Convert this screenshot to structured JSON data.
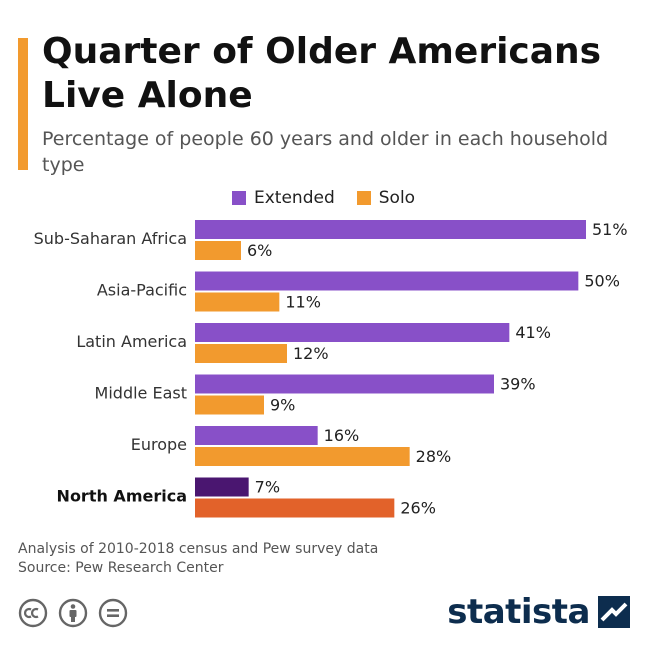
{
  "header": {
    "title": "Quarter of Older Americans Live Alone",
    "subtitle": "Percentage of people 60 years and older in each household type"
  },
  "colors": {
    "accent": "#f29a2e",
    "extended": "#8850c8",
    "solo": "#f29a2e",
    "highlight_extended": "#4a1670",
    "highlight_solo": "#e2622a"
  },
  "chart_data": {
    "type": "bar",
    "orientation": "horizontal",
    "categories": [
      "Sub-Saharan Africa",
      "Asia-Pacific",
      "Latin America",
      "Middle East",
      "Europe",
      "North America"
    ],
    "highlight_category": "North America",
    "series": [
      {
        "name": "Extended",
        "values": [
          51,
          50,
          41,
          39,
          16,
          7
        ]
      },
      {
        "name": "Solo",
        "values": [
          6,
          11,
          12,
          9,
          28,
          26
        ]
      }
    ],
    "value_suffix": "%",
    "xlim": [
      0,
      51
    ],
    "grid": false,
    "legend_position": "top"
  },
  "footer": {
    "note": "Analysis of 2010-2018 census and Pew survey data",
    "source": "Source: Pew Research Center",
    "license_icons": [
      "creative-commons-icon",
      "attribution-icon",
      "no-derivatives-icon"
    ],
    "brand": "statista"
  }
}
